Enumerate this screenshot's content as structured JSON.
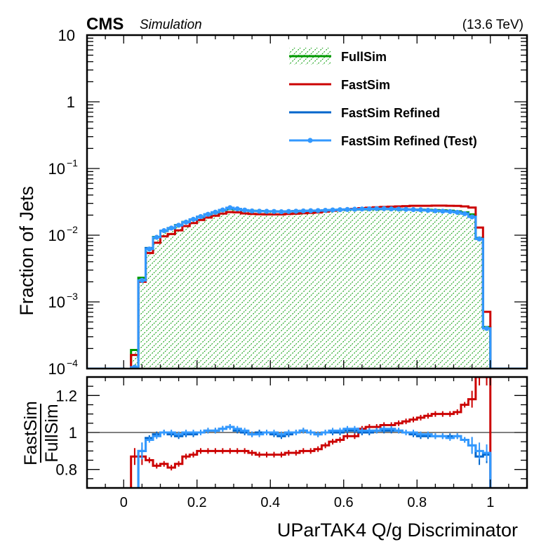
{
  "chart_data": {
    "type": "line",
    "subtype": "step-histogram-with-ratio",
    "header": {
      "experiment": "CMS",
      "label": "Simulation",
      "energy": "(13.6 TeV)"
    },
    "xlabel": "UParTAK4 Q/g Discriminator",
    "ylabel": "Fraction of Jets",
    "ratio_ylabel_num": "FastSim",
    "ratio_ylabel_den": "FullSim",
    "xlim": [
      -0.1,
      1.1
    ],
    "ylim": [
      0.0001,
      10
    ],
    "yscale": "log",
    "ratio_ylim": [
      0.7,
      1.3
    ],
    "x_ticks": [
      "0",
      "0.2",
      "0.4",
      "0.6",
      "0.8",
      "1"
    ],
    "x_tick_values": [
      0,
      0.2,
      0.4,
      0.6,
      0.8,
      1
    ],
    "y_ticks": [
      {
        "value": 10,
        "base": "10",
        "exp": ""
      },
      {
        "value": 1,
        "base": "1",
        "exp": ""
      },
      {
        "value": 0.1,
        "base": "10",
        "exp": "−1"
      },
      {
        "value": 0.01,
        "base": "10",
        "exp": "−2"
      },
      {
        "value": 0.001,
        "base": "10",
        "exp": "−3"
      },
      {
        "value": 0.0001,
        "base": "10",
        "exp": "−4"
      }
    ],
    "ratio_y_ticks": [
      "0.8",
      "1",
      "1.2"
    ],
    "ratio_y_tick_values": [
      0.8,
      1.0,
      1.2
    ],
    "legend_position": "top-right",
    "bin_edges_start": 0.0,
    "bin_width": 0.02,
    "n_bins": 50,
    "series": [
      {
        "name": "FullSim",
        "color": "#009900",
        "style": "hatched-fill",
        "values": [
          0,
          0.00019,
          0.0023,
          0.0064,
          0.0094,
          0.0116,
          0.0128,
          0.0142,
          0.0158,
          0.0172,
          0.0188,
          0.0204,
          0.0218,
          0.0234,
          0.0246,
          0.0244,
          0.0236,
          0.0232,
          0.023,
          0.0228,
          0.0227,
          0.0226,
          0.0228,
          0.0229,
          0.023,
          0.0232,
          0.0233,
          0.0235,
          0.0238,
          0.024,
          0.0242,
          0.0243,
          0.0244,
          0.0245,
          0.0246,
          0.0247,
          0.0246,
          0.0245,
          0.0244,
          0.0243,
          0.0242,
          0.024,
          0.0238,
          0.0236,
          0.0233,
          0.0228,
          0.022,
          0.0205,
          0.0091,
          0.00042
        ]
      },
      {
        "name": "FastSim",
        "color": "#cc0000",
        "style": "line",
        "values": [
          0,
          0.00016,
          0.002,
          0.0054,
          0.0077,
          0.0096,
          0.0104,
          0.0118,
          0.0137,
          0.0152,
          0.0169,
          0.0184,
          0.0196,
          0.0211,
          0.0222,
          0.022,
          0.0212,
          0.0208,
          0.0206,
          0.0205,
          0.0205,
          0.0205,
          0.0208,
          0.021,
          0.0213,
          0.0216,
          0.0219,
          0.0226,
          0.0233,
          0.0239,
          0.0243,
          0.0248,
          0.0254,
          0.0258,
          0.0262,
          0.0265,
          0.0268,
          0.027,
          0.0273,
          0.0276,
          0.0276,
          0.0276,
          0.0278,
          0.0278,
          0.0276,
          0.0275,
          0.027,
          0.026,
          0.013,
          0.00071
        ]
      },
      {
        "name": "FastSim Refined",
        "color": "#0066cc",
        "style": "line",
        "values": [
          0,
          0.000105,
          0.0021,
          0.0064,
          0.0093,
          0.0116,
          0.0127,
          0.014,
          0.0156,
          0.0171,
          0.0188,
          0.0205,
          0.022,
          0.0238,
          0.0252,
          0.0246,
          0.0236,
          0.023,
          0.023,
          0.0229,
          0.0228,
          0.0226,
          0.0228,
          0.023,
          0.0232,
          0.0232,
          0.0233,
          0.0236,
          0.0238,
          0.024,
          0.0243,
          0.0244,
          0.0245,
          0.0246,
          0.0247,
          0.0248,
          0.0247,
          0.0245,
          0.0243,
          0.0241,
          0.0238,
          0.0236,
          0.0234,
          0.0232,
          0.0229,
          0.0224,
          0.0213,
          0.019,
          0.0088,
          0.0004
        ]
      },
      {
        "name": "FastSim Refined (Test)",
        "color": "#3399ff",
        "style": "line-markers",
        "values": [
          0,
          0.000105,
          0.0021,
          0.0062,
          0.0093,
          0.0117,
          0.0128,
          0.0141,
          0.0157,
          0.0173,
          0.019,
          0.0206,
          0.0221,
          0.0239,
          0.0258,
          0.0248,
          0.0238,
          0.0231,
          0.0229,
          0.0228,
          0.0227,
          0.0225,
          0.0227,
          0.0229,
          0.0231,
          0.0233,
          0.0234,
          0.0236,
          0.0239,
          0.0241,
          0.0243,
          0.0245,
          0.0247,
          0.0248,
          0.025,
          0.025,
          0.0248,
          0.0246,
          0.0244,
          0.0242,
          0.024,
          0.0236,
          0.0232,
          0.0229,
          0.0226,
          0.022,
          0.021,
          0.0188,
          0.0088,
          0.0004
        ]
      }
    ],
    "ratio_series": [
      {
        "name": "FastSim",
        "color": "#cc0000",
        "values": [
          null,
          0.87,
          0.87,
          0.85,
          0.82,
          0.83,
          0.81,
          0.83,
          0.87,
          0.88,
          0.9,
          0.9,
          0.9,
          0.9,
          0.9,
          0.9,
          0.9,
          0.89,
          0.88,
          0.88,
          0.88,
          0.88,
          0.89,
          0.89,
          0.9,
          0.9,
          0.91,
          0.93,
          0.95,
          0.96,
          0.98,
          0.98,
          1.02,
          1.03,
          1.03,
          1.04,
          1.04,
          1.05,
          1.06,
          1.07,
          1.08,
          1.09,
          1.1,
          1.1,
          1.1,
          1.11,
          1.15,
          1.18,
          1.3,
          1.3
        ]
      },
      {
        "name": "FastSim Refined",
        "color": "#0066cc",
        "values": [
          null,
          0.55,
          0.9,
          0.97,
          0.99,
          1.0,
          0.99,
          0.98,
          0.99,
          0.99,
          1.0,
          1.01,
          1.01,
          1.02,
          1.03,
          1.01,
          1.0,
          0.99,
          1.0,
          1.0,
          0.99,
          0.98,
          0.99,
          1.0,
          1.01,
          1.0,
          0.99,
          1.0,
          1.0,
          1.0,
          1.01,
          1.01,
          1.0,
          1.0,
          1.01,
          1.01,
          1.01,
          1.01,
          1.0,
          0.99,
          0.98,
          0.98,
          0.98,
          0.98,
          0.98,
          0.98,
          0.96,
          0.93,
          0.87,
          0.88
        ]
      },
      {
        "name": "FastSim Refined (Test)",
        "color": "#3399ff",
        "values": [
          null,
          0.55,
          0.9,
          0.96,
          0.98,
          1.0,
          1.0,
          0.99,
          1.0,
          1.0,
          1.0,
          1.01,
          1.01,
          1.02,
          1.03,
          1.02,
          1.01,
          0.99,
          0.99,
          1.0,
          1.0,
          0.99,
          1.0,
          1.0,
          1.01,
          1.0,
          0.99,
          1.0,
          1.01,
          1.01,
          1.02,
          1.02,
          1.01,
          1.01,
          1.01,
          1.02,
          1.02,
          1.01,
          1.0,
          1.0,
          0.99,
          0.99,
          0.98,
          0.98,
          0.97,
          0.98,
          0.96,
          0.93,
          0.9,
          0.89
        ]
      }
    ],
    "reference_line": 1.0
  }
}
